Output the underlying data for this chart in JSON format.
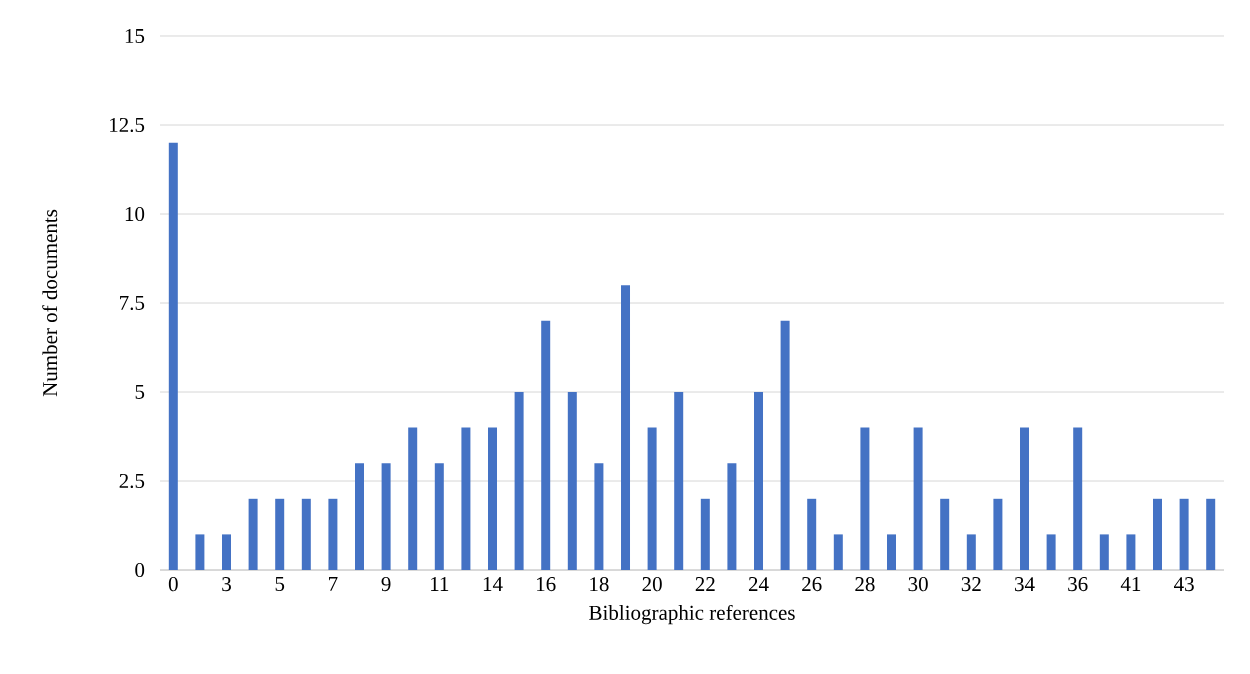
{
  "chart_data": {
    "type": "bar",
    "xlabel": "Bibliographic  references",
    "ylabel": "Number of documents",
    "categories": [
      "0",
      null,
      "3",
      null,
      "5",
      null,
      "7",
      null,
      "9",
      null,
      "11",
      null,
      "14",
      null,
      "16",
      null,
      "18",
      null,
      "20",
      null,
      "22",
      null,
      "24",
      null,
      "26",
      null,
      "28",
      null,
      "30",
      null,
      "32",
      null,
      "34",
      null,
      "36",
      null,
      "41",
      null,
      "43",
      null
    ],
    "values": [
      12,
      1,
      1,
      2,
      2,
      2,
      2,
      3,
      3,
      4,
      3,
      4,
      4,
      5,
      7,
      5,
      3,
      8,
      4,
      5,
      2,
      3,
      5,
      7,
      2,
      1,
      4,
      1,
      4,
      2,
      1,
      2,
      4,
      1,
      4,
      1,
      1,
      2,
      2,
      2
    ],
    "color": "#4472c4",
    "ylim": [
      0,
      15
    ],
    "yticks": [
      0,
      {
        "value": 2.5,
        "label": "2.5"
      },
      5,
      {
        "value": 7.5,
        "label": "7.5"
      },
      10,
      {
        "value": 12.5,
        "label": "12.5"
      },
      15
    ],
    "grid": "y"
  }
}
